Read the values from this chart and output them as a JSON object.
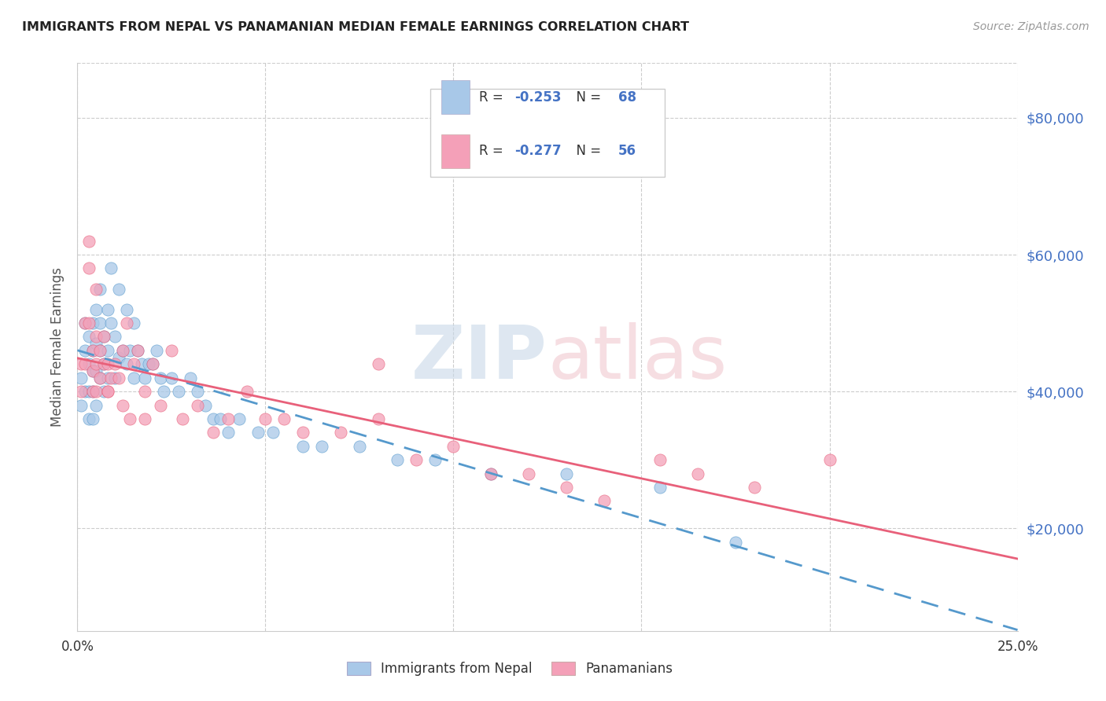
{
  "title": "IMMIGRANTS FROM NEPAL VS PANAMANIAN MEDIAN FEMALE EARNINGS CORRELATION CHART",
  "source": "Source: ZipAtlas.com",
  "ylabel": "Median Female Earnings",
  "y_ticks": [
    20000,
    40000,
    60000,
    80000
  ],
  "y_tick_labels": [
    "$20,000",
    "$40,000",
    "$60,000",
    "$80,000"
  ],
  "xlim": [
    0.0,
    0.25
  ],
  "ylim": [
    5000,
    88000
  ],
  "nepal_color": "#a8c8e8",
  "panama_color": "#f4a0b8",
  "nepal_line_color": "#5599cc",
  "panama_line_color": "#e8607a",
  "nepal_R": -0.253,
  "nepal_N": 68,
  "panama_R": -0.277,
  "panama_N": 56,
  "legend_label_nepal": "Immigrants from Nepal",
  "legend_label_panama": "Panamanians",
  "nepal_scatter_x": [
    0.001,
    0.001,
    0.002,
    0.002,
    0.002,
    0.003,
    0.003,
    0.003,
    0.003,
    0.004,
    0.004,
    0.004,
    0.004,
    0.004,
    0.005,
    0.005,
    0.005,
    0.005,
    0.006,
    0.006,
    0.006,
    0.006,
    0.007,
    0.007,
    0.007,
    0.008,
    0.008,
    0.008,
    0.009,
    0.009,
    0.01,
    0.01,
    0.011,
    0.011,
    0.012,
    0.013,
    0.013,
    0.014,
    0.015,
    0.015,
    0.016,
    0.017,
    0.018,
    0.019,
    0.02,
    0.021,
    0.022,
    0.023,
    0.025,
    0.027,
    0.03,
    0.032,
    0.034,
    0.036,
    0.038,
    0.04,
    0.043,
    0.048,
    0.052,
    0.06,
    0.065,
    0.075,
    0.085,
    0.095,
    0.11,
    0.13,
    0.155,
    0.175
  ],
  "nepal_scatter_y": [
    42000,
    38000,
    50000,
    46000,
    40000,
    48000,
    44000,
    40000,
    36000,
    50000,
    46000,
    43000,
    40000,
    36000,
    52000,
    47000,
    43000,
    38000,
    55000,
    50000,
    46000,
    42000,
    48000,
    44000,
    40000,
    52000,
    46000,
    42000,
    58000,
    50000,
    48000,
    42000,
    55000,
    45000,
    46000,
    52000,
    44000,
    46000,
    50000,
    42000,
    46000,
    44000,
    42000,
    44000,
    44000,
    46000,
    42000,
    40000,
    42000,
    40000,
    42000,
    40000,
    38000,
    36000,
    36000,
    34000,
    36000,
    34000,
    34000,
    32000,
    32000,
    32000,
    30000,
    30000,
    28000,
    28000,
    26000,
    18000
  ],
  "panama_scatter_x": [
    0.001,
    0.001,
    0.002,
    0.002,
    0.003,
    0.003,
    0.004,
    0.004,
    0.004,
    0.005,
    0.005,
    0.005,
    0.006,
    0.006,
    0.007,
    0.007,
    0.008,
    0.008,
    0.009,
    0.01,
    0.011,
    0.012,
    0.013,
    0.014,
    0.015,
    0.016,
    0.018,
    0.02,
    0.022,
    0.025,
    0.028,
    0.032,
    0.036,
    0.04,
    0.045,
    0.05,
    0.055,
    0.06,
    0.07,
    0.08,
    0.09,
    0.1,
    0.11,
    0.12,
    0.13,
    0.14,
    0.155,
    0.165,
    0.18,
    0.2,
    0.003,
    0.005,
    0.008,
    0.012,
    0.018,
    0.08
  ],
  "panama_scatter_y": [
    44000,
    40000,
    50000,
    44000,
    58000,
    50000,
    46000,
    43000,
    40000,
    48000,
    44000,
    40000,
    46000,
    42000,
    48000,
    44000,
    44000,
    40000,
    42000,
    44000,
    42000,
    46000,
    50000,
    36000,
    44000,
    46000,
    40000,
    44000,
    38000,
    46000,
    36000,
    38000,
    34000,
    36000,
    40000,
    36000,
    36000,
    34000,
    34000,
    36000,
    30000,
    32000,
    28000,
    28000,
    26000,
    24000,
    30000,
    28000,
    26000,
    30000,
    62000,
    55000,
    40000,
    38000,
    36000,
    44000
  ]
}
